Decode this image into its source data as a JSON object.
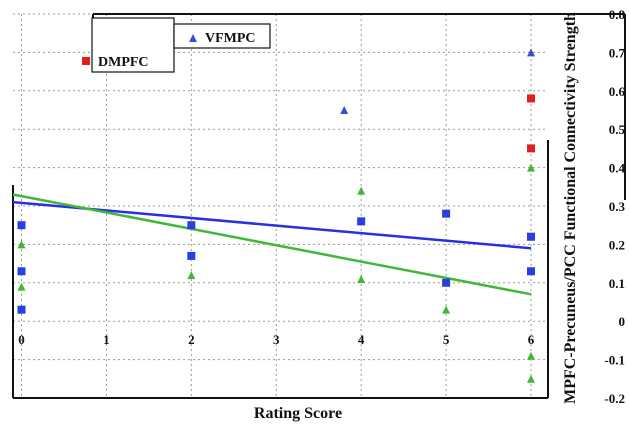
{
  "chart_data": {
    "type": "scatter",
    "xlabel": "Rating Score",
    "ylabel": "MPFC-Precuneus/PCC Functional Connectivity Strength",
    "xlim": [
      -0.1,
      6.2
    ],
    "ylim": [
      -0.2,
      0.8
    ],
    "x_ticks": [
      "0",
      "1",
      "2",
      "3",
      "4",
      "5",
      "6"
    ],
    "y_ticks": [
      "-0.2",
      "-0.1",
      "0",
      "0.1",
      "0.2",
      "0.3",
      "0.4",
      "0.5",
      "0.6",
      "0.7",
      "0.8"
    ],
    "legend": {
      "position": "top-left"
    },
    "grid": true,
    "series": [
      {
        "name": "VFMPC",
        "marker": "triangle",
        "color": "#3a4fd8",
        "points": [
          {
            "x": 3.8,
            "y": 0.55
          },
          {
            "x": 6.0,
            "y": 0.7
          }
        ]
      },
      {
        "name": "DMPFC",
        "marker": "square",
        "color": "#e02020",
        "points": [
          {
            "x": 6.0,
            "y": 0.58
          },
          {
            "x": 6.0,
            "y": 0.45
          }
        ]
      },
      {
        "name": "",
        "marker": "square",
        "color": "#2a3fe0",
        "points": [
          {
            "x": 0,
            "y": 0.25
          },
          {
            "x": 0,
            "y": 0.13
          },
          {
            "x": 0,
            "y": 0.03
          },
          {
            "x": 2,
            "y": 0.25
          },
          {
            "x": 2,
            "y": 0.17
          },
          {
            "x": 4,
            "y": 0.26
          },
          {
            "x": 5,
            "y": 0.28
          },
          {
            "x": 5,
            "y": 0.1
          },
          {
            "x": 6,
            "y": 0.22
          },
          {
            "x": 6,
            "y": 0.13
          }
        ],
        "trend": {
          "x1": -0.1,
          "y1": 0.31,
          "x2": 6.0,
          "y2": 0.19,
          "color": "#2a2fe0"
        }
      },
      {
        "name": "",
        "marker": "triangle",
        "color": "#3fb83a",
        "points": [
          {
            "x": 0,
            "y": 0.2
          },
          {
            "x": 0,
            "y": 0.09
          },
          {
            "x": 2,
            "y": 0.12
          },
          {
            "x": 4,
            "y": 0.34
          },
          {
            "x": 4,
            "y": 0.11
          },
          {
            "x": 5,
            "y": 0.03
          },
          {
            "x": 6,
            "y": 0.4
          },
          {
            "x": 6,
            "y": -0.09
          },
          {
            "x": 6,
            "y": -0.15
          }
        ],
        "trend": {
          "x1": -0.1,
          "y1": 0.33,
          "x2": 6.0,
          "y2": 0.07,
          "color": "#3fb83a"
        }
      }
    ]
  }
}
